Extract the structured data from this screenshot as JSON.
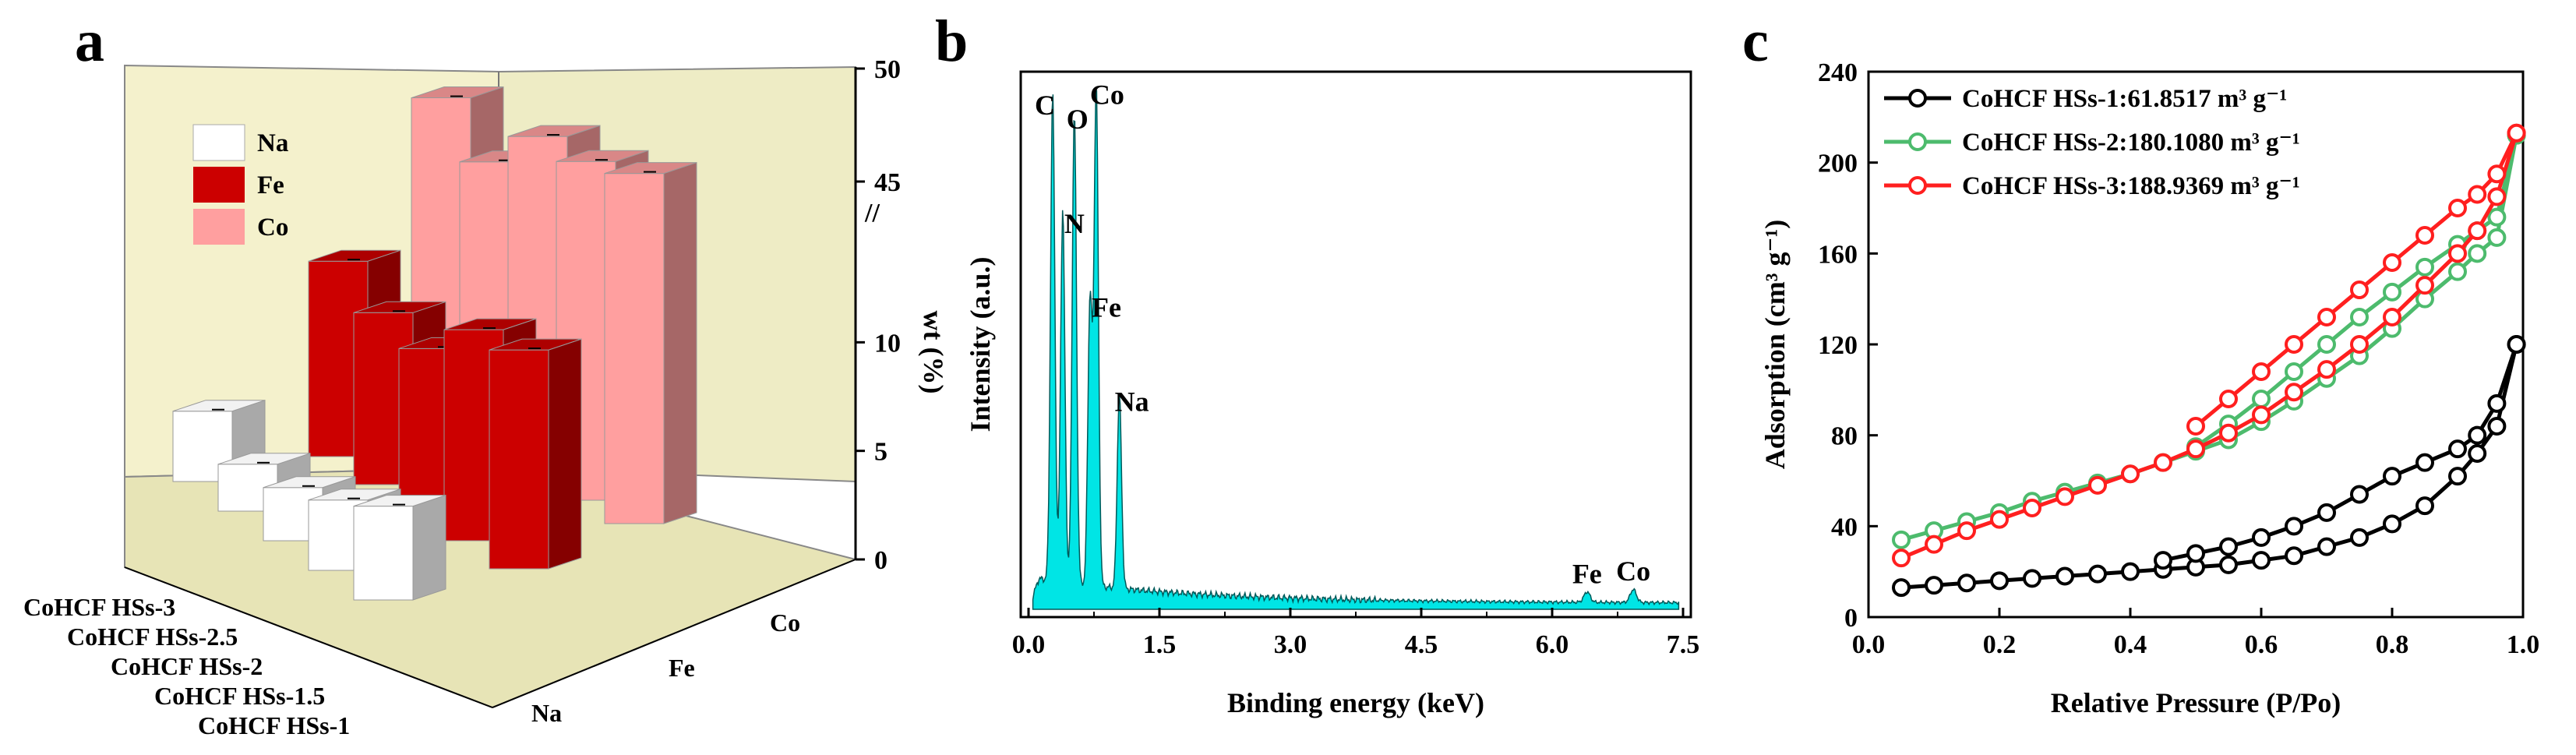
{
  "chart_data": [
    {
      "panel": "a",
      "type": "bar",
      "title": "",
      "zlabel": "wt (%)",
      "categories": [
        "CoHCF HSs-3",
        "CoHCF HSs-2.5",
        "CoHCF HSs-2",
        "CoHCF HSs-1.5",
        "CoHCF HSs-1"
      ],
      "elements": [
        "Na",
        "Fe",
        "Co"
      ],
      "z_ticks": [
        "0",
        "5",
        "10",
        "45",
        "50"
      ],
      "z_break": true,
      "legend": [
        "Na",
        "Fe",
        "Co"
      ],
      "colors": {
        "Na": "#ffffff",
        "Fe": "#cc0000",
        "Co": "#ff9f9f"
      },
      "series": [
        {
          "name": "Na",
          "values": [
            4.5,
            3.0,
            3.4,
            4.5,
            6.0
          ]
        },
        {
          "name": "Fe",
          "values": [
            12.5,
            11.0,
            10.5,
            13.5,
            14.0
          ]
        },
        {
          "name": "Co",
          "values": [
            48.7,
            46.2,
            49.2,
            49.1,
            49.8
          ]
        }
      ]
    },
    {
      "panel": "b",
      "type": "area",
      "xlabel": "Binding energy (keV)",
      "ylabel": "Intensity (a.u.)",
      "xlim": [
        0.0,
        7.5
      ],
      "x_ticks": [
        "0.0",
        "1.5",
        "3.0",
        "4.5",
        "6.0",
        "7.5"
      ],
      "fill_color": "#00e5e5",
      "peaks": [
        {
          "label": "C",
          "x": 0.277,
          "height": 0.93
        },
        {
          "label": "N",
          "x": 0.392,
          "height": 0.71
        },
        {
          "label": "O",
          "x": 0.525,
          "height": 0.9
        },
        {
          "label": "Co",
          "x": 0.776,
          "height": 0.95
        },
        {
          "label": "Fe",
          "x": 0.705,
          "height": 0.55
        },
        {
          "label": "Na",
          "x": 1.041,
          "height": 0.37
        },
        {
          "label": "Fe",
          "x": 6.4,
          "height": 0.02
        },
        {
          "label": "Co",
          "x": 6.93,
          "height": 0.025
        }
      ]
    },
    {
      "panel": "c",
      "type": "line",
      "xlabel": "Relative Pressure (P/Po)",
      "ylabel": "Adsorption (cm³ g⁻¹)",
      "xlim": [
        0.0,
        1.0
      ],
      "ylim": [
        0,
        240
      ],
      "x_ticks": [
        "0.0",
        "0.2",
        "0.4",
        "0.6",
        "0.8",
        "1.0"
      ],
      "y_ticks": [
        "0",
        "40",
        "80",
        "120",
        "160",
        "200",
        "240"
      ],
      "series": [
        {
          "name": "CoHCF HSs-1:61.8517 m³ g⁻¹",
          "color": "#000000",
          "adsorption": {
            "x": [
              0.05,
              0.1,
              0.15,
              0.2,
              0.25,
              0.3,
              0.35,
              0.4,
              0.45,
              0.5,
              0.55,
              0.6,
              0.65,
              0.7,
              0.75,
              0.8,
              0.85,
              0.9,
              0.93,
              0.96,
              0.99
            ],
            "y": [
              13,
              14,
              15,
              16,
              17,
              18,
              19,
              20,
              21,
              22,
              23,
              25,
              27,
              31,
              35,
              41,
              49,
              62,
              72,
              84,
              120
            ]
          },
          "desorption": {
            "x": [
              0.99,
              0.96,
              0.93,
              0.9,
              0.85,
              0.8,
              0.75,
              0.7,
              0.65,
              0.6,
              0.55,
              0.5,
              0.45
            ],
            "y": [
              120,
              94,
              80,
              74,
              68,
              62,
              54,
              46,
              40,
              35,
              31,
              28,
              25
            ]
          }
        },
        {
          "name": "CoHCF HSs-2:180.1080 m³ g⁻¹",
          "color": "#4dbb6d",
          "adsorption": {
            "x": [
              0.05,
              0.1,
              0.15,
              0.2,
              0.25,
              0.3,
              0.35,
              0.4,
              0.45,
              0.5,
              0.55,
              0.6,
              0.65,
              0.7,
              0.75,
              0.8,
              0.85,
              0.9,
              0.93,
              0.96,
              0.99
            ],
            "y": [
              34,
              38,
              42,
              46,
              51,
              55,
              59,
              63,
              68,
              73,
              78,
              86,
              95,
              105,
              115,
              127,
              140,
              152,
              160,
              167,
              212
            ]
          },
          "desorption": {
            "x": [
              0.99,
              0.96,
              0.93,
              0.9,
              0.85,
              0.8,
              0.75,
              0.7,
              0.65,
              0.6,
              0.55,
              0.5
            ],
            "y": [
              212,
              176,
              170,
              164,
              154,
              143,
              132,
              120,
              108,
              96,
              85,
              75
            ]
          }
        },
        {
          "name": "CoHCF HSs-3:188.9369 m³ g⁻¹",
          "color": "#ff1f1f",
          "adsorption": {
            "x": [
              0.05,
              0.1,
              0.15,
              0.2,
              0.25,
              0.3,
              0.35,
              0.4,
              0.45,
              0.5,
              0.55,
              0.6,
              0.65,
              0.7,
              0.75,
              0.8,
              0.85,
              0.9,
              0.93,
              0.96,
              0.99
            ],
            "y": [
              26,
              32,
              38,
              43,
              48,
              53,
              58,
              63,
              68,
              74,
              81,
              89,
              99,
              109,
              120,
              132,
              146,
              160,
              170,
              185,
              213
            ]
          },
          "desorption": {
            "x": [
              0.99,
              0.96,
              0.93,
              0.9,
              0.85,
              0.8,
              0.75,
              0.7,
              0.65,
              0.6,
              0.55,
              0.5
            ],
            "y": [
              213,
              195,
              186,
              180,
              168,
              156,
              144,
              132,
              120,
              108,
              96,
              84
            ]
          }
        }
      ]
    }
  ],
  "labels": {
    "a": "a",
    "b": "b",
    "c": "c",
    "axis_na": "Na",
    "axis_fe": "Fe",
    "axis_co": "Co"
  }
}
